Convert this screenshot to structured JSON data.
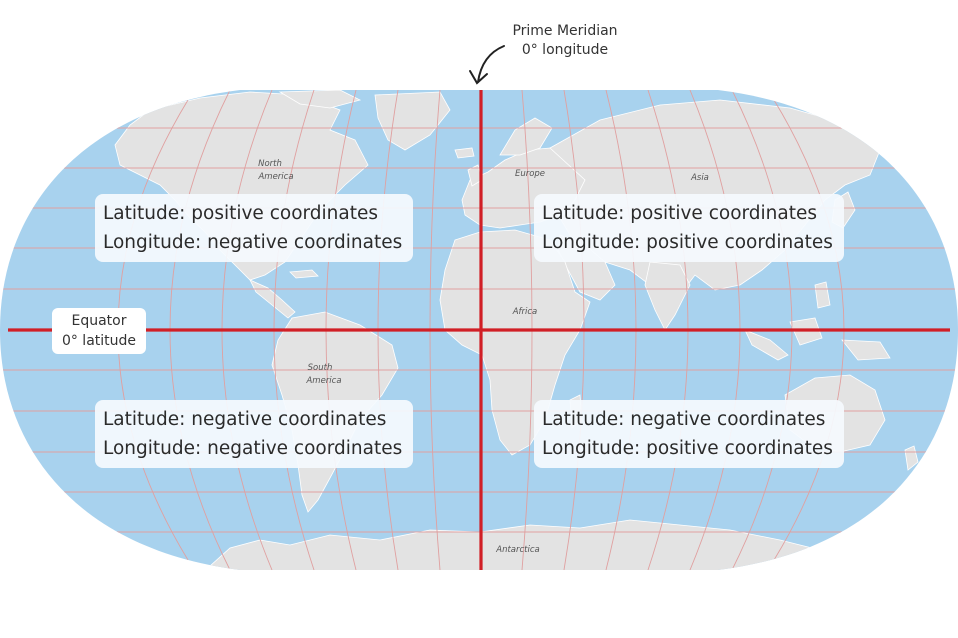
{
  "prime_meridian": {
    "title": "Prime Meridian",
    "subtitle": "0° longitude"
  },
  "equator": {
    "title": "Equator",
    "subtitle": "0° latitude"
  },
  "continents": {
    "north_america_1": "North",
    "north_america_2": "America",
    "south_america_1": "South",
    "south_america_2": "America",
    "europe": "Europe",
    "asia": "Asia",
    "africa": "Africa",
    "antarctica": "Antarctica"
  },
  "quadrants": {
    "nw": {
      "latitude": "Latitude: positive coordinates",
      "longitude": "Longitude: negative coordinates"
    },
    "ne": {
      "latitude": "Latitude: positive coordinates",
      "longitude": "Longitude: positive coordinates"
    },
    "sw": {
      "latitude": "Latitude: negative coordinates",
      "longitude": "Longitude: negative coordinates"
    },
    "se": {
      "latitude": "Latitude: negative coordinates",
      "longitude": "Longitude: positive coordinates"
    }
  },
  "colors": {
    "ocean": "#a8d2ee",
    "land": "#e3e3e3",
    "graticule": "#e0a0a0",
    "axis": "#d11f26"
  }
}
